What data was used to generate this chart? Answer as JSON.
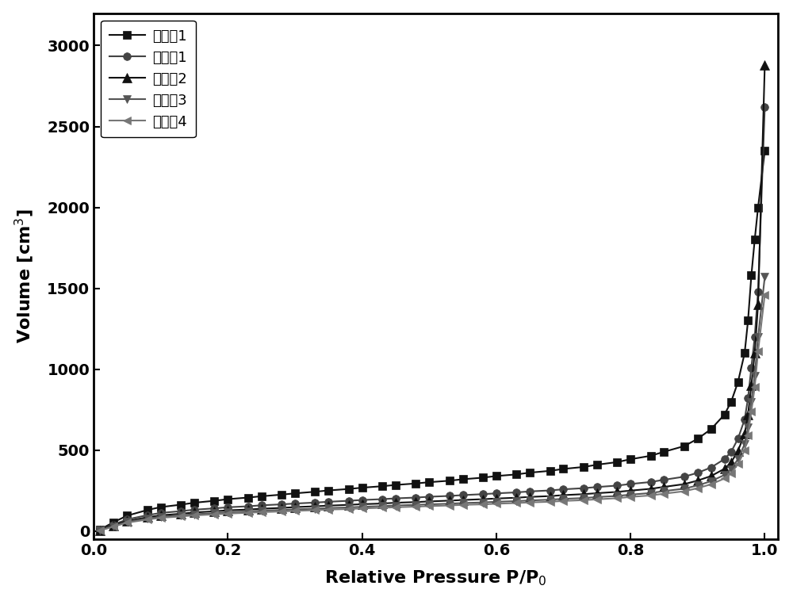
{
  "title": "",
  "xlabel": "Relative Pressure P/P$_0$",
  "ylabel": "Volume [cm$^3$]",
  "xlim": [
    0.0,
    1.02
  ],
  "ylim": [
    -50,
    3200
  ],
  "yticks": [
    0,
    500,
    1000,
    1500,
    2000,
    2500,
    3000
  ],
  "xticks": [
    0.0,
    0.2,
    0.4,
    0.6,
    0.8,
    1.0
  ],
  "series": [
    {
      "label": "对比例1",
      "color": "#111111",
      "marker": "s",
      "markersize": 7,
      "linewidth": 1.5,
      "x": [
        0.01,
        0.03,
        0.05,
        0.08,
        0.1,
        0.13,
        0.15,
        0.18,
        0.2,
        0.23,
        0.25,
        0.28,
        0.3,
        0.33,
        0.35,
        0.38,
        0.4,
        0.43,
        0.45,
        0.48,
        0.5,
        0.53,
        0.55,
        0.58,
        0.6,
        0.63,
        0.65,
        0.68,
        0.7,
        0.73,
        0.75,
        0.78,
        0.8,
        0.83,
        0.85,
        0.88,
        0.9,
        0.92,
        0.94,
        0.95,
        0.96,
        0.97,
        0.975,
        0.98,
        0.985,
        0.99,
        1.0
      ],
      "y": [
        10,
        55,
        95,
        130,
        148,
        163,
        175,
        187,
        197,
        207,
        215,
        225,
        233,
        243,
        251,
        260,
        268,
        277,
        285,
        294,
        302,
        311,
        320,
        330,
        340,
        350,
        361,
        372,
        384,
        396,
        410,
        426,
        444,
        465,
        490,
        525,
        570,
        630,
        720,
        800,
        920,
        1100,
        1300,
        1580,
        1800,
        2000,
        2350
      ]
    },
    {
      "label": "实施例1",
      "color": "#444444",
      "marker": "o",
      "markersize": 7,
      "linewidth": 1.5,
      "x": [
        0.01,
        0.03,
        0.05,
        0.08,
        0.1,
        0.13,
        0.15,
        0.18,
        0.2,
        0.23,
        0.25,
        0.28,
        0.3,
        0.33,
        0.35,
        0.38,
        0.4,
        0.43,
        0.45,
        0.48,
        0.5,
        0.53,
        0.55,
        0.58,
        0.6,
        0.63,
        0.65,
        0.68,
        0.7,
        0.73,
        0.75,
        0.78,
        0.8,
        0.83,
        0.85,
        0.88,
        0.9,
        0.92,
        0.94,
        0.95,
        0.96,
        0.97,
        0.975,
        0.98,
        0.985,
        0.99,
        1.0
      ],
      "y": [
        8,
        40,
        72,
        98,
        112,
        123,
        132,
        140,
        147,
        153,
        159,
        165,
        170,
        176,
        181,
        187,
        192,
        197,
        202,
        207,
        212,
        217,
        222,
        228,
        233,
        239,
        245,
        251,
        258,
        265,
        272,
        281,
        291,
        303,
        317,
        336,
        360,
        393,
        445,
        490,
        570,
        690,
        820,
        1010,
        1200,
        1480,
        2620
      ]
    },
    {
      "label": "实施例2",
      "color": "#111111",
      "marker": "^",
      "markersize": 8,
      "linewidth": 1.5,
      "x": [
        0.01,
        0.03,
        0.05,
        0.08,
        0.1,
        0.13,
        0.15,
        0.18,
        0.2,
        0.23,
        0.25,
        0.28,
        0.3,
        0.33,
        0.35,
        0.38,
        0.4,
        0.43,
        0.45,
        0.48,
        0.5,
        0.53,
        0.55,
        0.58,
        0.6,
        0.63,
        0.65,
        0.68,
        0.7,
        0.73,
        0.75,
        0.78,
        0.8,
        0.83,
        0.85,
        0.88,
        0.9,
        0.92,
        0.94,
        0.95,
        0.96,
        0.97,
        0.975,
        0.98,
        0.985,
        0.99,
        1.0
      ],
      "y": [
        6,
        35,
        62,
        85,
        97,
        107,
        115,
        122,
        128,
        133,
        138,
        143,
        148,
        153,
        157,
        162,
        166,
        170,
        175,
        179,
        183,
        188,
        192,
        197,
        201,
        206,
        211,
        216,
        222,
        228,
        234,
        242,
        250,
        261,
        273,
        290,
        312,
        340,
        385,
        425,
        495,
        600,
        720,
        900,
        1100,
        1400,
        2880
      ]
    },
    {
      "label": "实施例3",
      "color": "#555555",
      "marker": "v",
      "markersize": 7,
      "linewidth": 1.5,
      "x": [
        0.01,
        0.03,
        0.05,
        0.08,
        0.1,
        0.13,
        0.15,
        0.18,
        0.2,
        0.23,
        0.25,
        0.28,
        0.3,
        0.33,
        0.35,
        0.38,
        0.4,
        0.43,
        0.45,
        0.48,
        0.5,
        0.53,
        0.55,
        0.58,
        0.6,
        0.63,
        0.65,
        0.68,
        0.7,
        0.73,
        0.75,
        0.78,
        0.8,
        0.83,
        0.85,
        0.88,
        0.9,
        0.92,
        0.94,
        0.95,
        0.96,
        0.97,
        0.975,
        0.98,
        0.985,
        0.99,
        1.0
      ],
      "y": [
        5,
        30,
        56,
        77,
        88,
        97,
        104,
        110,
        116,
        121,
        126,
        130,
        134,
        138,
        142,
        146,
        150,
        154,
        158,
        162,
        165,
        169,
        173,
        177,
        181,
        185,
        189,
        194,
        199,
        204,
        210,
        217,
        225,
        235,
        247,
        262,
        282,
        308,
        347,
        383,
        444,
        537,
        640,
        800,
        960,
        1200,
        1570
      ]
    },
    {
      "label": "实施例4",
      "color": "#777777",
      "marker": "<",
      "markersize": 7,
      "linewidth": 1.5,
      "x": [
        0.01,
        0.03,
        0.05,
        0.08,
        0.1,
        0.13,
        0.15,
        0.18,
        0.2,
        0.23,
        0.25,
        0.28,
        0.3,
        0.33,
        0.35,
        0.38,
        0.4,
        0.43,
        0.45,
        0.48,
        0.5,
        0.53,
        0.55,
        0.58,
        0.6,
        0.63,
        0.65,
        0.68,
        0.7,
        0.73,
        0.75,
        0.78,
        0.8,
        0.83,
        0.85,
        0.88,
        0.9,
        0.92,
        0.94,
        0.95,
        0.96,
        0.97,
        0.975,
        0.98,
        0.985,
        0.99,
        1.0
      ],
      "y": [
        4,
        28,
        52,
        71,
        82,
        90,
        97,
        103,
        108,
        113,
        117,
        121,
        125,
        129,
        133,
        136,
        140,
        144,
        147,
        151,
        154,
        158,
        162,
        165,
        169,
        173,
        177,
        181,
        186,
        191,
        196,
        203,
        211,
        220,
        231,
        246,
        265,
        289,
        325,
        358,
        414,
        499,
        594,
        740,
        890,
        1110,
        1460
      ]
    }
  ],
  "legend_fontsize": 13,
  "axis_label_fontsize": 16,
  "tick_fontsize": 14,
  "background_color": "#ffffff",
  "spine_color": "#000000"
}
